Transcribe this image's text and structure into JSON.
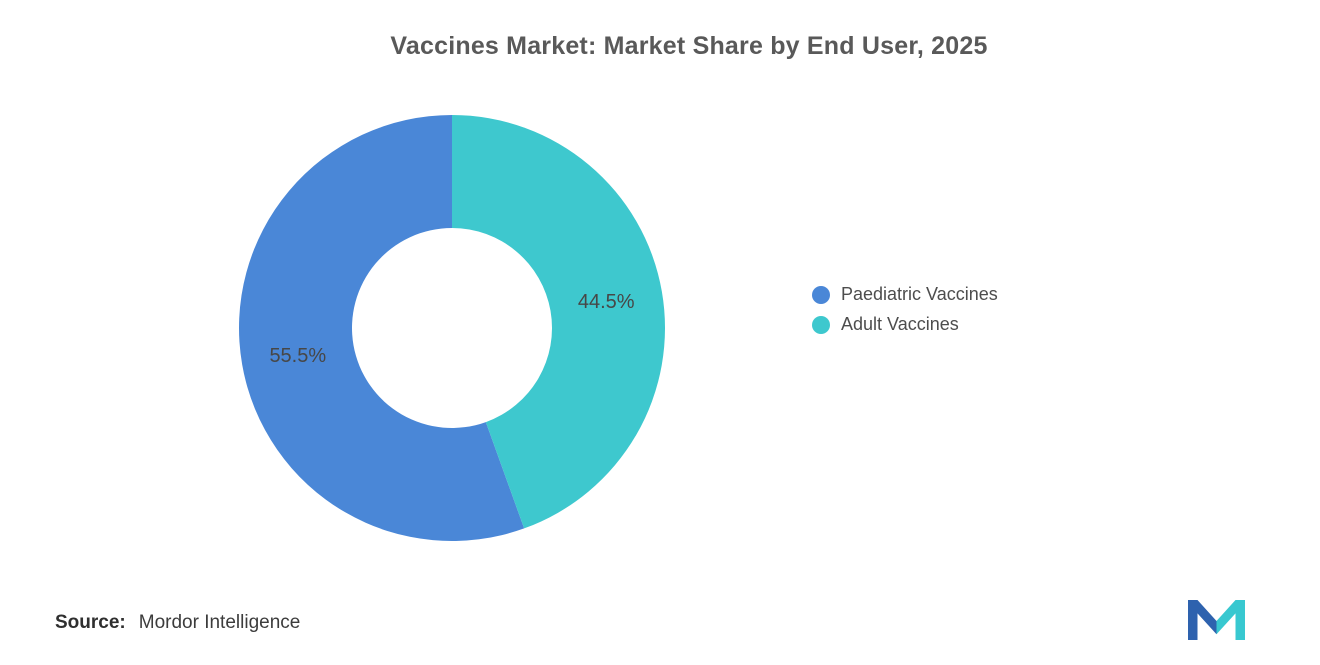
{
  "title": "Vaccines Market: Market Share by End User, 2025",
  "legend": [
    {
      "label": "Paediatric Vaccines",
      "color": "#4A87D7"
    },
    {
      "label": "Adult Vaccines",
      "color": "#3EC8CE"
    }
  ],
  "source": {
    "label": "Source:",
    "value": "Mordor Intelligence"
  },
  "logo": {
    "name": "mordor-intelligence-logo",
    "blue": "#2E62AE",
    "teal": "#38C8D0"
  },
  "chart_data": {
    "type": "pie",
    "title": "Vaccines Market: Market Share by End User, 2025",
    "donut": true,
    "inner_radius_ratio": 0.47,
    "start_angle": "top",
    "direction": "counterclockwise",
    "legend_position": "right",
    "unit": "%",
    "slices": [
      {
        "label": "Paediatric Vaccines",
        "value": 55.5,
        "display": "55.5%",
        "color": "#4A87D7"
      },
      {
        "label": "Adult Vaccines",
        "value": 44.5,
        "display": "44.5%",
        "color": "#3EC8CE"
      }
    ]
  }
}
